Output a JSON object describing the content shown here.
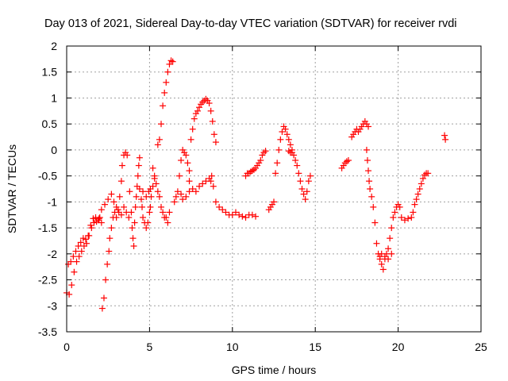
{
  "chart_data": {
    "type": "scatter",
    "title": "Day 013 of 2021, Sidereal Day-to-day VTEC variation (SDTVAR) for receiver rvdi",
    "xlabel": "GPS time / hours",
    "ylabel": "SDTVAR / TECUs",
    "xlim": [
      0,
      25
    ],
    "ylim": [
      -3.5,
      2
    ],
    "x_ticks": [
      "0",
      "5",
      "10",
      "15",
      "20",
      "25"
    ],
    "y_ticks": [
      "-3.5",
      "-3",
      "-2.5",
      "-2",
      "-1.5",
      "-1",
      "-0.5",
      "0",
      "0.5",
      "1",
      "1.5",
      "2"
    ],
    "grid": true,
    "marker": "+",
    "marker_color": "#ff0000",
    "series": [
      {
        "name": "",
        "points": [
          [
            0.0,
            -2.75
          ],
          [
            0.15,
            -2.78
          ],
          [
            0.3,
            -2.6
          ],
          [
            0.45,
            -2.35
          ],
          [
            0.6,
            -2.15
          ],
          [
            0.75,
            -2.05
          ],
          [
            0.9,
            -1.95
          ],
          [
            1.05,
            -1.85
          ],
          [
            1.2,
            -1.8
          ],
          [
            1.35,
            -1.65
          ],
          [
            1.5,
            -1.5
          ],
          [
            1.65,
            -1.4
          ],
          [
            1.8,
            -1.38
          ],
          [
            1.95,
            -1.32
          ],
          [
            0.1,
            -2.2
          ],
          [
            0.25,
            -2.15
          ],
          [
            0.4,
            -2.05
          ],
          [
            0.55,
            -1.95
          ],
          [
            0.7,
            -1.85
          ],
          [
            0.85,
            -1.78
          ],
          [
            1.0,
            -1.7
          ],
          [
            1.15,
            -1.72
          ],
          [
            1.3,
            -1.65
          ],
          [
            1.45,
            -1.45
          ],
          [
            1.6,
            -1.32
          ],
          [
            1.75,
            -1.3
          ],
          [
            1.9,
            -1.35
          ],
          [
            2.0,
            -1.3
          ],
          [
            2.1,
            -1.4
          ],
          [
            2.15,
            -3.05
          ],
          [
            2.25,
            -2.85
          ],
          [
            2.35,
            -2.5
          ],
          [
            2.45,
            -2.2
          ],
          [
            2.55,
            -1.95
          ],
          [
            2.6,
            -1.7
          ],
          [
            2.7,
            -1.5
          ],
          [
            2.8,
            -1.3
          ],
          [
            2.9,
            -1.2
          ],
          [
            3.0,
            -1.3
          ],
          [
            3.1,
            -1.15
          ],
          [
            3.2,
            -0.9
          ],
          [
            3.3,
            -0.6
          ],
          [
            3.35,
            -0.3
          ],
          [
            3.45,
            -0.1
          ],
          [
            3.55,
            -0.05
          ],
          [
            3.65,
            -0.1
          ],
          [
            2.1,
            -1.15
          ],
          [
            2.3,
            -1.05
          ],
          [
            2.5,
            -0.95
          ],
          [
            2.7,
            -0.85
          ],
          [
            2.85,
            -1.0
          ],
          [
            3.0,
            -1.1
          ],
          [
            3.15,
            -1.2
          ],
          [
            3.3,
            -1.25
          ],
          [
            3.45,
            -1.1
          ],
          [
            3.6,
            -1.2
          ],
          [
            3.75,
            -1.3
          ],
          [
            3.8,
            -0.8
          ],
          [
            3.9,
            -1.2
          ],
          [
            3.95,
            -1.5
          ],
          [
            4.0,
            -1.7
          ],
          [
            4.05,
            -1.85
          ],
          [
            4.1,
            -1.4
          ],
          [
            4.15,
            -1.1
          ],
          [
            4.2,
            -0.9
          ],
          [
            4.25,
            -0.7
          ],
          [
            4.3,
            -0.5
          ],
          [
            4.35,
            -0.3
          ],
          [
            4.4,
            -0.15
          ],
          [
            4.4,
            -0.75
          ],
          [
            4.5,
            -0.95
          ],
          [
            4.55,
            -1.1
          ],
          [
            4.6,
            -1.3
          ],
          [
            4.7,
            -1.4
          ],
          [
            4.8,
            -1.5
          ],
          [
            4.9,
            -1.4
          ],
          [
            5.0,
            -1.2
          ],
          [
            5.05,
            -1.1
          ],
          [
            5.1,
            -0.9
          ],
          [
            5.2,
            -0.7
          ],
          [
            5.3,
            -0.55
          ],
          [
            4.6,
            -0.8
          ],
          [
            4.8,
            -0.9
          ],
          [
            4.95,
            -0.8
          ],
          [
            5.05,
            -0.75
          ],
          [
            5.2,
            -0.35
          ],
          [
            5.3,
            -0.5
          ],
          [
            5.4,
            -0.65
          ],
          [
            5.5,
            -0.8
          ],
          [
            5.6,
            -0.9
          ],
          [
            5.7,
            -1.1
          ],
          [
            5.8,
            -1.2
          ],
          [
            5.9,
            -1.3
          ],
          [
            6.0,
            -1.3
          ],
          [
            6.1,
            -1.4
          ],
          [
            6.2,
            -1.2
          ],
          [
            5.5,
            0.1
          ],
          [
            5.6,
            0.2
          ],
          [
            5.7,
            0.5
          ],
          [
            5.8,
            0.85
          ],
          [
            5.9,
            1.1
          ],
          [
            6.0,
            1.3
          ],
          [
            6.1,
            1.5
          ],
          [
            6.2,
            1.65
          ],
          [
            6.3,
            1.72
          ],
          [
            6.4,
            1.7
          ],
          [
            6.5,
            -1.0
          ],
          [
            6.6,
            -0.9
          ],
          [
            6.7,
            -0.8
          ],
          [
            6.8,
            -0.5
          ],
          [
            6.9,
            -0.2
          ],
          [
            7.0,
            0.0
          ],
          [
            7.1,
            -0.05
          ],
          [
            7.2,
            -0.1
          ],
          [
            7.3,
            -0.25
          ],
          [
            7.4,
            -0.4
          ],
          [
            7.4,
            -0.6
          ],
          [
            7.5,
            0.2
          ],
          [
            7.6,
            0.4
          ],
          [
            7.7,
            0.6
          ],
          [
            7.8,
            0.7
          ],
          [
            7.9,
            0.75
          ],
          [
            8.0,
            0.82
          ],
          [
            8.1,
            0.88
          ],
          [
            8.2,
            0.92
          ],
          [
            8.3,
            0.95
          ],
          [
            8.4,
            0.98
          ],
          [
            8.5,
            0.95
          ],
          [
            8.6,
            0.9
          ],
          [
            8.7,
            0.75
          ],
          [
            8.8,
            0.55
          ],
          [
            8.9,
            0.3
          ],
          [
            9.0,
            0.15
          ],
          [
            6.9,
            -0.85
          ],
          [
            7.0,
            -0.95
          ],
          [
            7.2,
            -0.9
          ],
          [
            7.4,
            -0.8
          ],
          [
            7.6,
            -0.75
          ],
          [
            7.8,
            -0.8
          ],
          [
            8.0,
            -0.7
          ],
          [
            8.2,
            -0.65
          ],
          [
            8.4,
            -0.6
          ],
          [
            8.6,
            -0.55
          ],
          [
            8.7,
            -0.6
          ],
          [
            8.75,
            -0.5
          ],
          [
            8.85,
            -0.7
          ],
          [
            9.0,
            -1.0
          ],
          [
            9.2,
            -1.1
          ],
          [
            9.4,
            -1.15
          ],
          [
            9.6,
            -1.2
          ],
          [
            9.8,
            -1.25
          ],
          [
            10.0,
            -1.25
          ],
          [
            10.2,
            -1.2
          ],
          [
            10.4,
            -1.25
          ],
          [
            10.6,
            -1.28
          ],
          [
            10.8,
            -1.3
          ],
          [
            11.0,
            -1.25
          ],
          [
            11.2,
            -1.25
          ],
          [
            11.4,
            -1.28
          ],
          [
            10.8,
            -0.5
          ],
          [
            10.9,
            -0.45
          ],
          [
            11.0,
            -0.45
          ],
          [
            11.1,
            -0.42
          ],
          [
            11.2,
            -0.4
          ],
          [
            11.3,
            -0.38
          ],
          [
            11.4,
            -0.35
          ],
          [
            11.5,
            -0.3
          ],
          [
            11.6,
            -0.25
          ],
          [
            11.7,
            -0.2
          ],
          [
            11.8,
            -0.1
          ],
          [
            11.9,
            -0.05
          ],
          [
            12.0,
            -0.02
          ],
          [
            12.2,
            -1.15
          ],
          [
            12.3,
            -1.1
          ],
          [
            12.4,
            -1.05
          ],
          [
            12.5,
            -1.0
          ],
          [
            12.6,
            -0.45
          ],
          [
            12.7,
            -0.25
          ],
          [
            12.8,
            0.0
          ],
          [
            12.9,
            0.2
          ],
          [
            13.0,
            0.35
          ],
          [
            13.1,
            0.45
          ],
          [
            13.2,
            0.4
          ],
          [
            13.3,
            0.3
          ],
          [
            13.4,
            0.2
          ],
          [
            13.5,
            0.1
          ],
          [
            13.6,
            0.0
          ],
          [
            13.4,
            -0.02
          ],
          [
            13.5,
            -0.05
          ],
          [
            13.6,
            -0.05
          ],
          [
            13.7,
            -0.1
          ],
          [
            13.8,
            -0.2
          ],
          [
            13.9,
            -0.3
          ],
          [
            14.0,
            -0.45
          ],
          [
            14.1,
            -0.6
          ],
          [
            14.2,
            -0.75
          ],
          [
            14.3,
            -0.85
          ],
          [
            14.4,
            -0.95
          ],
          [
            14.5,
            -0.8
          ],
          [
            14.6,
            -0.6
          ],
          [
            14.7,
            -0.5
          ],
          [
            16.6,
            -0.35
          ],
          [
            16.7,
            -0.3
          ],
          [
            16.8,
            -0.25
          ],
          [
            16.9,
            -0.22
          ],
          [
            17.0,
            -0.2
          ],
          [
            17.2,
            0.25
          ],
          [
            17.3,
            0.3
          ],
          [
            17.4,
            0.35
          ],
          [
            17.5,
            0.4
          ],
          [
            17.6,
            0.35
          ],
          [
            17.7,
            0.4
          ],
          [
            17.8,
            0.45
          ],
          [
            17.9,
            0.5
          ],
          [
            18.0,
            0.55
          ],
          [
            18.1,
            0.5
          ],
          [
            18.2,
            0.45
          ],
          [
            18.1,
            0.0
          ],
          [
            18.15,
            -0.2
          ],
          [
            18.2,
            -0.4
          ],
          [
            18.25,
            -0.6
          ],
          [
            18.3,
            -0.75
          ],
          [
            18.4,
            -0.9
          ],
          [
            18.5,
            -1.1
          ],
          [
            18.6,
            -1.4
          ],
          [
            18.7,
            -1.8
          ],
          [
            18.8,
            -2.0
          ],
          [
            18.9,
            -2.1
          ],
          [
            19.0,
            -2.2
          ],
          [
            19.1,
            -2.3
          ],
          [
            19.2,
            -2.1
          ],
          [
            19.3,
            -2.0
          ],
          [
            19.4,
            -1.9
          ],
          [
            19.5,
            -1.7
          ],
          [
            19.6,
            -1.5
          ],
          [
            19.7,
            -1.3
          ],
          [
            19.8,
            -1.2
          ],
          [
            19.9,
            -1.1
          ],
          [
            20.0,
            -1.05
          ],
          [
            20.1,
            -1.1
          ],
          [
            18.9,
            -2.05
          ],
          [
            19.0,
            -2.0
          ],
          [
            19.2,
            -2.05
          ],
          [
            19.4,
            -2.1
          ],
          [
            19.6,
            -2.0
          ],
          [
            20.2,
            -1.3
          ],
          [
            20.4,
            -1.35
          ],
          [
            20.6,
            -1.32
          ],
          [
            20.8,
            -1.3
          ],
          [
            20.9,
            -1.2
          ],
          [
            21.0,
            -1.05
          ],
          [
            21.1,
            -0.95
          ],
          [
            21.2,
            -0.85
          ],
          [
            21.3,
            -0.75
          ],
          [
            21.4,
            -0.65
          ],
          [
            21.5,
            -0.55
          ],
          [
            21.6,
            -0.48
          ],
          [
            21.7,
            -0.45
          ],
          [
            21.8,
            -0.45
          ],
          [
            22.8,
            0.28
          ],
          [
            22.85,
            0.2
          ]
        ]
      }
    ]
  }
}
